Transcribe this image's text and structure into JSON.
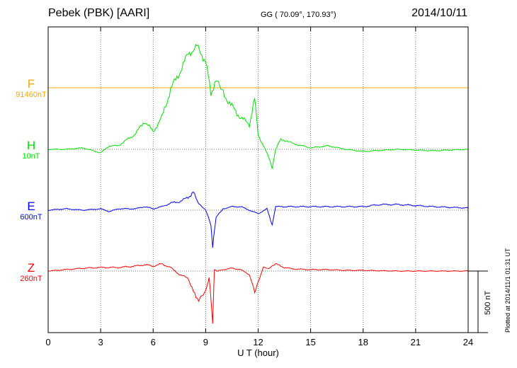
{
  "header": {
    "station": "Pebek (PBK)  [AARI]",
    "coords": "GG ( 70.09°, 170.93°)",
    "date": "2014/10/11"
  },
  "credit": "Plotted at 2014/11/1 01:31  UT",
  "chart_data": {
    "type": "line",
    "xlabel": "U T (hour)",
    "xlim": [
      0,
      24
    ],
    "xticks": [
      "0",
      "3",
      "6",
      "9",
      "12",
      "15",
      "18",
      "21",
      "24"
    ],
    "vertical_grid": true,
    "scale_bar": "500 nT",
    "series": [
      {
        "name": "F",
        "scale_label": "91460nT",
        "color": "#FFA500",
        "points": [
          [
            0,
            0
          ],
          [
            3,
            0
          ],
          [
            6,
            0
          ],
          [
            9,
            0
          ],
          [
            12,
            0
          ],
          [
            15,
            0
          ],
          [
            18,
            0
          ],
          [
            21,
            0
          ],
          [
            24,
            0
          ]
        ]
      },
      {
        "name": "H",
        "scale_label": "10nT",
        "color": "#00E000",
        "points": [
          [
            0,
            0
          ],
          [
            1,
            0
          ],
          [
            2,
            -2
          ],
          [
            3,
            5
          ],
          [
            3.5,
            -5
          ],
          [
            4,
            -5
          ],
          [
            5,
            -22
          ],
          [
            5.5,
            -40
          ],
          [
            6,
            -25
          ],
          [
            6.5,
            -45
          ],
          [
            7,
            -85
          ],
          [
            7.5,
            -108
          ],
          [
            8,
            -135
          ],
          [
            8.5,
            -145
          ],
          [
            9,
            -125
          ],
          [
            9.3,
            -80
          ],
          [
            9.6,
            -95
          ],
          [
            10,
            -80
          ],
          [
            10.5,
            -60
          ],
          [
            11,
            -45
          ],
          [
            11.5,
            -35
          ],
          [
            11.8,
            -70
          ],
          [
            12,
            -20
          ],
          [
            12.3,
            -5
          ],
          [
            12.6,
            10
          ],
          [
            12.8,
            25
          ],
          [
            13,
            0
          ],
          [
            13.3,
            -15
          ],
          [
            14,
            -8
          ],
          [
            15,
            -2
          ],
          [
            16,
            -5
          ],
          [
            17,
            0
          ],
          [
            18,
            3
          ],
          [
            20,
            0
          ],
          [
            22,
            2
          ],
          [
            24,
            0
          ]
        ]
      },
      {
        "name": "E",
        "scale_label": "600nT",
        "color": "#0000FF",
        "points": [
          [
            0,
            0
          ],
          [
            1,
            -2
          ],
          [
            2,
            0
          ],
          [
            3,
            -2
          ],
          [
            3.5,
            2
          ],
          [
            4,
            -2
          ],
          [
            5,
            -2
          ],
          [
            5.5,
            -5
          ],
          [
            6,
            -2
          ],
          [
            6.5,
            -5
          ],
          [
            7,
            -10
          ],
          [
            7.5,
            -12
          ],
          [
            8,
            -18
          ],
          [
            8.3,
            -25
          ],
          [
            8.6,
            -10
          ],
          [
            9,
            0
          ],
          [
            9.3,
            20
          ],
          [
            9.4,
            55
          ],
          [
            9.6,
            10
          ],
          [
            10,
            -2
          ],
          [
            10.5,
            -5
          ],
          [
            11,
            -5
          ],
          [
            11.5,
            0
          ],
          [
            12,
            5
          ],
          [
            12.5,
            -2
          ],
          [
            12.8,
            20
          ],
          [
            13,
            -5
          ],
          [
            14,
            -5
          ],
          [
            16,
            -5
          ],
          [
            18,
            -5
          ],
          [
            19,
            -8
          ],
          [
            20,
            -8
          ],
          [
            22,
            -5
          ],
          [
            24,
            -3
          ]
        ]
      },
      {
        "name": "Z",
        "scale_label": "260nT",
        "color": "#FF0000",
        "points": [
          [
            0,
            0
          ],
          [
            1,
            -2
          ],
          [
            2,
            -4
          ],
          [
            3,
            -5
          ],
          [
            4,
            -5
          ],
          [
            4.5,
            -6
          ],
          [
            5,
            -7
          ],
          [
            5.5,
            -9
          ],
          [
            6,
            -7
          ],
          [
            6.5,
            -10
          ],
          [
            7,
            -5
          ],
          [
            7.5,
            5
          ],
          [
            8,
            10
          ],
          [
            8.3,
            30
          ],
          [
            8.6,
            40
          ],
          [
            9,
            30
          ],
          [
            9.2,
            10
          ],
          [
            9.4,
            75
          ],
          [
            9.5,
            -2
          ],
          [
            9.7,
            0
          ],
          [
            10,
            -2
          ],
          [
            10.5,
            -4
          ],
          [
            11,
            -2
          ],
          [
            11.5,
            5
          ],
          [
            11.8,
            30
          ],
          [
            12,
            15
          ],
          [
            12.3,
            -5
          ],
          [
            12.6,
            -4
          ],
          [
            13,
            -10
          ],
          [
            13.5,
            -5
          ],
          [
            14,
            -3
          ],
          [
            15,
            -2
          ],
          [
            16,
            -2
          ],
          [
            17,
            -1
          ],
          [
            18,
            -1
          ],
          [
            20,
            0
          ],
          [
            22,
            0
          ],
          [
            24,
            0
          ]
        ]
      }
    ]
  }
}
